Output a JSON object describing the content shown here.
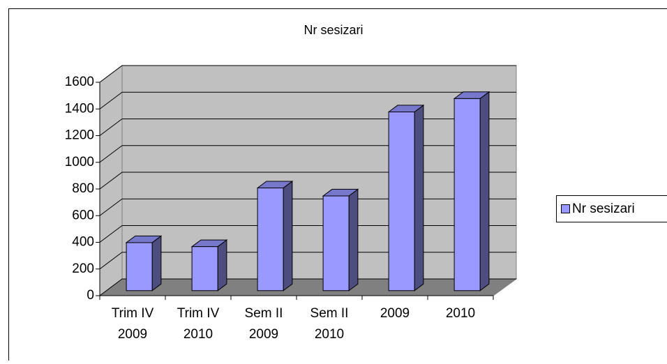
{
  "chart_data": {
    "type": "bar3d",
    "title": "Nr sesizari",
    "categories": [
      "Trim IV 2009",
      "Trim IV 2010",
      "Sem II 2009",
      "Sem II 2010",
      "2009",
      "2010"
    ],
    "series": [
      {
        "name": "Nr sesizari",
        "color": "#9999ff",
        "values": [
          360,
          330,
          770,
          710,
          1340,
          1440
        ]
      }
    ],
    "ylim": [
      0,
      1600
    ],
    "yticks": [
      0,
      200,
      400,
      600,
      800,
      1000,
      1200,
      1400,
      1600
    ],
    "grid": true,
    "legend": "right"
  }
}
